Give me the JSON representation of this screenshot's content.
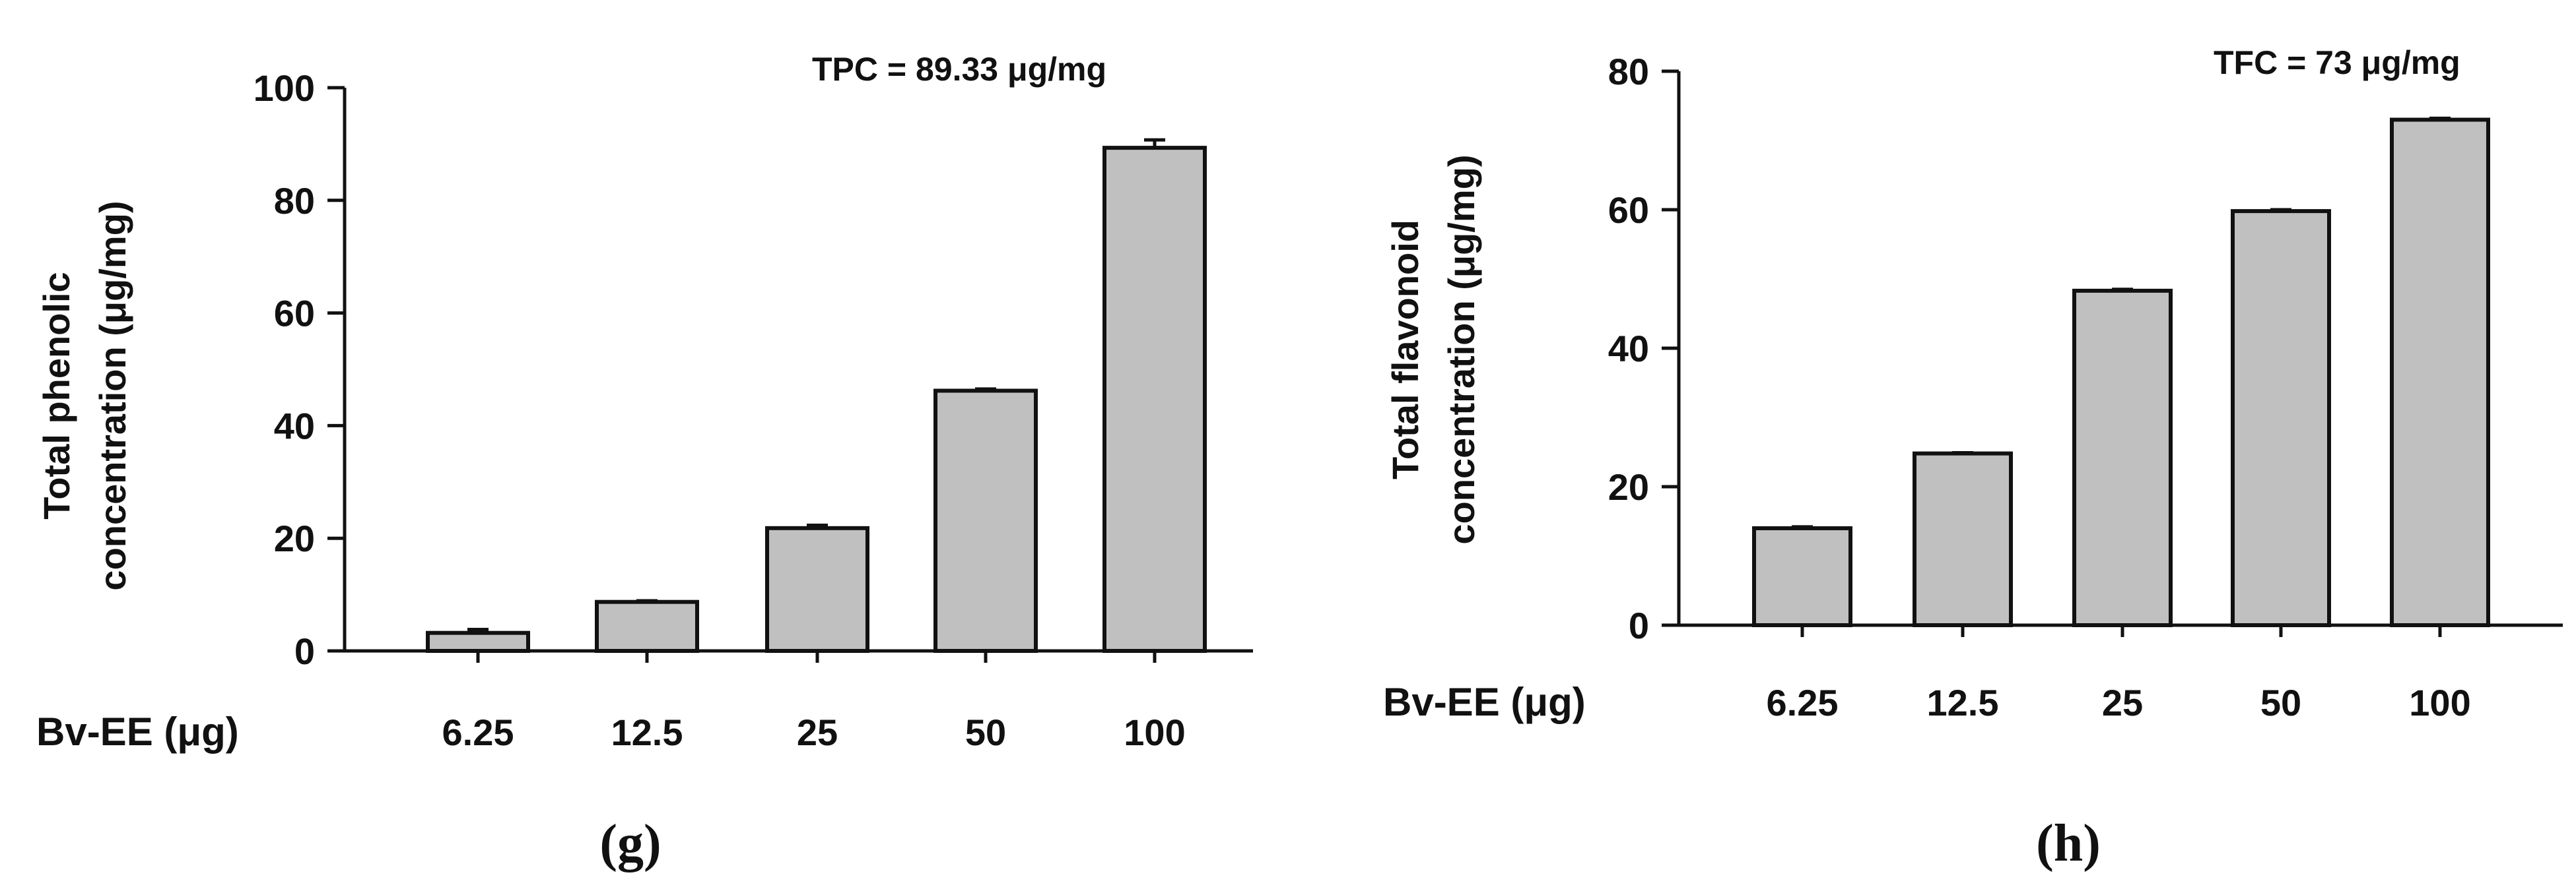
{
  "chart_data": [
    {
      "type": "bar",
      "panel_label": "(g)",
      "annotation": "TPC = 89.33 μg/mg",
      "xlabel": "Bv-EE (μg)",
      "ylabel_lines": [
        "Total phenolic",
        "concentration (μg/mg)"
      ],
      "categories": [
        "6.25",
        "12.5",
        "25",
        "50",
        "100"
      ],
      "values": [
        3.2,
        8.7,
        21.8,
        46.2,
        89.33
      ],
      "errors": [
        0.6,
        0.2,
        0.5,
        0.3,
        1.4
      ],
      "ylim": [
        0,
        100
      ],
      "yticks": [
        0,
        20,
        40,
        60,
        80,
        100
      ],
      "bar_color": "#c0c0c0",
      "grid": false
    },
    {
      "type": "bar",
      "panel_label": "(h)",
      "annotation": "TFC = 73 μg/mg",
      "xlabel": "Bv-EE (μg)",
      "ylabel_lines": [
        "Total flavonoid",
        "concentration (μg/mg)"
      ],
      "categories": [
        "6.25",
        "12.5",
        "25",
        "50",
        "100"
      ],
      "values": [
        14.0,
        24.8,
        48.3,
        59.8,
        73.0
      ],
      "errors": [
        0.2,
        0.1,
        0.2,
        0.2,
        0.2
      ],
      "ylim": [
        0,
        80
      ],
      "yticks": [
        0,
        20,
        40,
        60,
        80
      ],
      "bar_color": "#c0c0c0",
      "grid": false
    }
  ]
}
